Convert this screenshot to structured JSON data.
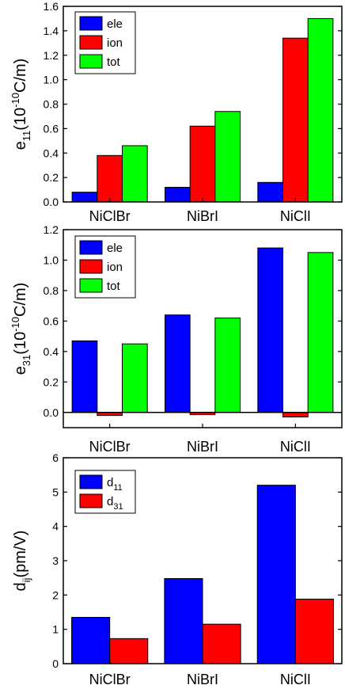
{
  "chart_data": [
    {
      "type": "bar",
      "y_label_parts": [
        "e",
        "11",
        "(10",
        "-10",
        "C/m)"
      ],
      "categories": [
        "NiClBr",
        "NiBrI",
        "NiClI"
      ],
      "series": [
        {
          "name": "ele",
          "color": "#0000ff",
          "values": [
            0.08,
            0.12,
            0.16
          ]
        },
        {
          "name": "ion",
          "color": "#ff0000",
          "values": [
            0.38,
            0.62,
            1.34
          ]
        },
        {
          "name": "tot",
          "color": "#00ff00",
          "values": [
            0.46,
            0.74,
            1.5
          ]
        }
      ],
      "ylim": [
        0,
        1.6
      ],
      "yticks": [
        {
          "value": 0,
          "label": "0.0"
        },
        0.2,
        0.4,
        0.6,
        0.8,
        {
          "value": 1,
          "label": "1.0"
        },
        1.2,
        1.4,
        1.6
      ],
      "legend": "upper left"
    },
    {
      "type": "bar",
      "y_label_parts": [
        "e",
        "31",
        "(10",
        "-10",
        "C/m)"
      ],
      "categories": [
        "NiClBr",
        "NiBrI",
        "NiClI"
      ],
      "series": [
        {
          "name": "ele",
          "color": "#0000ff",
          "values": [
            0.47,
            0.64,
            1.08
          ]
        },
        {
          "name": "ion",
          "color": "#ff0000",
          "values": [
            -0.02,
            -0.015,
            -0.03
          ]
        },
        {
          "name": "tot",
          "color": "#00ff00",
          "values": [
            0.45,
            0.62,
            1.05
          ]
        }
      ],
      "ylim": [
        -0.1,
        1.2
      ],
      "yticks": [
        {
          "value": 0,
          "label": "0.0"
        },
        0.2,
        0.4,
        0.6,
        0.8,
        {
          "value": 1,
          "label": "1.0"
        },
        1.2
      ],
      "legend": "upper left"
    },
    {
      "type": "bar",
      "y_label_parts": [
        "d",
        "ij",
        "(pm/V)"
      ],
      "categories": [
        "NiClBr",
        "NiBrI",
        "NiClI"
      ],
      "series": [
        {
          "name": "d11",
          "color": "#0000ff",
          "values": [
            1.35,
            2.48,
            5.2
          ]
        },
        {
          "name": "d31",
          "color": "#ff0000",
          "values": [
            0.73,
            1.15,
            1.88
          ]
        }
      ],
      "ylim": [
        0,
        6
      ],
      "yticks": [
        0,
        1,
        2,
        3,
        4,
        5,
        6
      ],
      "legend": "upper left"
    }
  ]
}
